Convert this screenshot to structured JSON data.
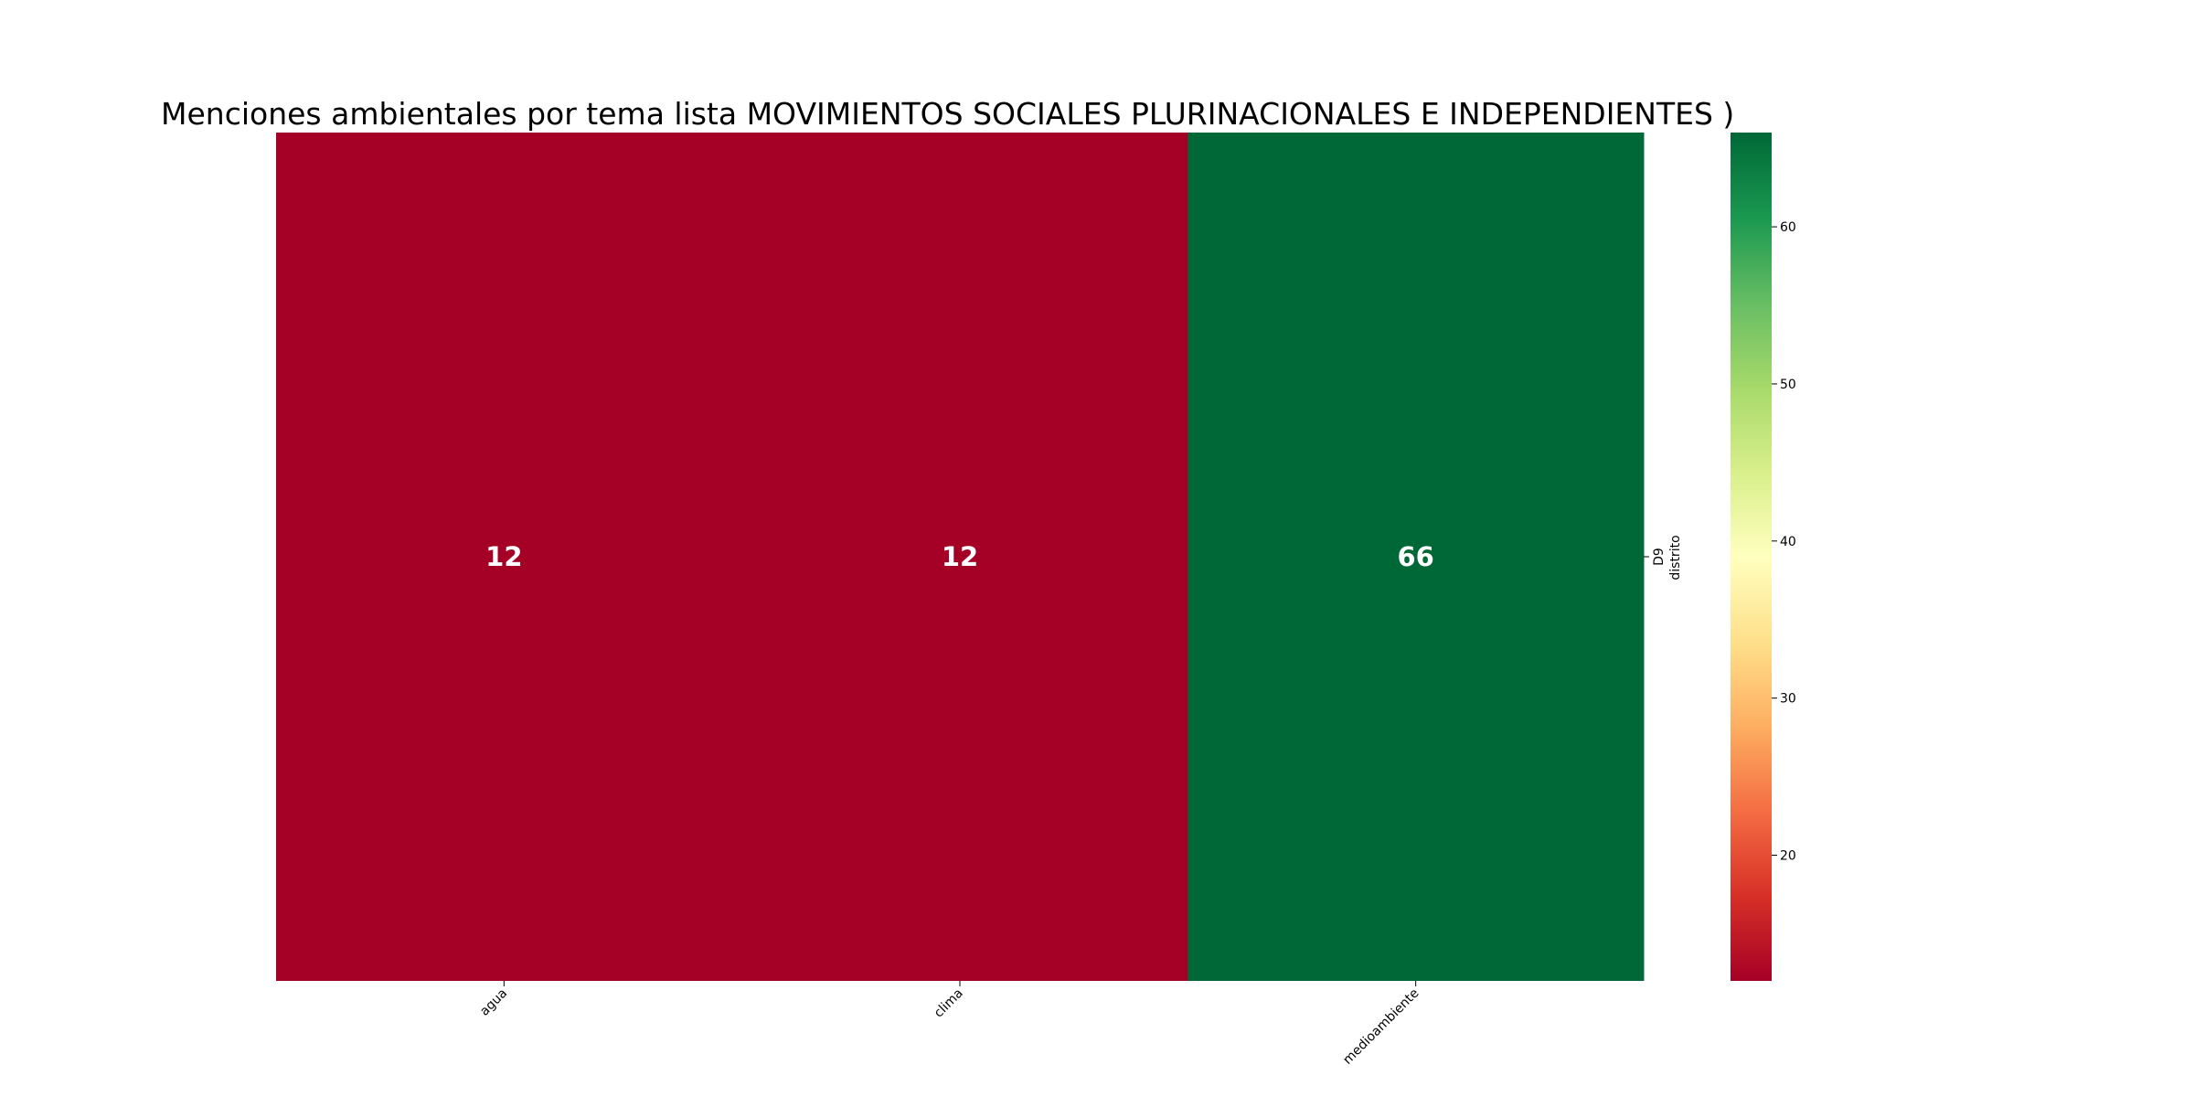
{
  "chart_data": {
    "type": "heatmap",
    "title": "Menciones ambientales por tema lista MOVIMIENTOS SOCIALES PLURINACIONALES E INDEPENDIENTES )",
    "columns": [
      "agua",
      "clima",
      "medioambiente"
    ],
    "rows": [
      "D9"
    ],
    "values": [
      [
        12,
        12,
        66
      ]
    ],
    "ylabel": "distrito",
    "xlabel": "",
    "colorbar": {
      "colormap": "RdYlGn",
      "vmin": 12,
      "vmax": 66,
      "ticks": [
        20,
        30,
        40,
        50,
        60
      ]
    },
    "annotation_color": "#ffffff"
  }
}
